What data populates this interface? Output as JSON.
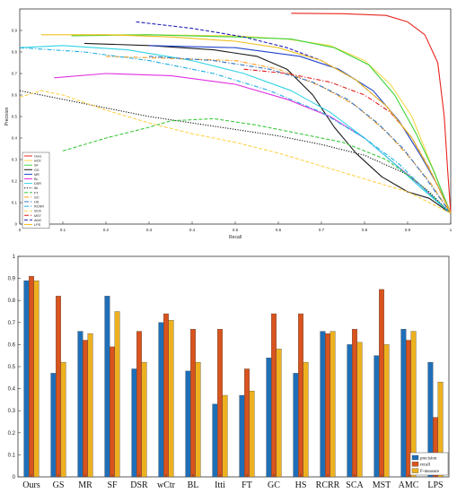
{
  "chart_data": [
    {
      "type": "line",
      "xlabel": "Recall",
      "ylabel": "Precision",
      "xlim": [
        0,
        1
      ],
      "ylim": [
        0,
        1
      ],
      "xticks": [
        "0",
        "0.1",
        "0.2",
        "0.3",
        "0.4",
        "0.5",
        "0.6",
        "0.7",
        "0.8",
        "0.9",
        "1"
      ],
      "yticks": [
        "0",
        "0.1",
        "0.2",
        "0.3",
        "0.4",
        "0.5",
        "0.6",
        "0.7",
        "0.8",
        "0.9"
      ],
      "grid": false,
      "legend_position": "bottom-left",
      "series": [
        {
          "name": "Ours",
          "color": "#e8251f",
          "dash": "solid",
          "points": [
            [
              0.63,
              0.98
            ],
            [
              0.75,
              0.978
            ],
            [
              0.85,
              0.97
            ],
            [
              0.9,
              0.94
            ],
            [
              0.94,
              0.88
            ],
            [
              0.97,
              0.75
            ],
            [
              0.985,
              0.5
            ],
            [
              0.993,
              0.25
            ],
            [
              1.0,
              0.05
            ]
          ]
        },
        {
          "name": "wCtr",
          "color": "#f3d94a",
          "dash": "solid",
          "points": [
            [
              0.12,
              0.88
            ],
            [
              0.3,
              0.88
            ],
            [
              0.5,
              0.875
            ],
            [
              0.62,
              0.86
            ],
            [
              0.72,
              0.83
            ],
            [
              0.8,
              0.76
            ],
            [
              0.86,
              0.65
            ],
            [
              0.91,
              0.5
            ],
            [
              0.95,
              0.3
            ],
            [
              1.0,
              0.05
            ]
          ]
        },
        {
          "name": "SF",
          "color": "#3fd43a",
          "dash": "solid",
          "points": [
            [
              0.12,
              0.875
            ],
            [
              0.3,
              0.88
            ],
            [
              0.5,
              0.87
            ],
            [
              0.63,
              0.86
            ],
            [
              0.73,
              0.82
            ],
            [
              0.81,
              0.74
            ],
            [
              0.87,
              0.6
            ],
            [
              0.92,
              0.42
            ],
            [
              0.96,
              0.25
            ],
            [
              1.0,
              0.05
            ]
          ]
        },
        {
          "name": "GS",
          "color": "#1a1a1a",
          "dash": "solid",
          "points": [
            [
              0.15,
              0.84
            ],
            [
              0.3,
              0.83
            ],
            [
              0.45,
              0.81
            ],
            [
              0.55,
              0.78
            ],
            [
              0.62,
              0.72
            ],
            [
              0.68,
              0.6
            ],
            [
              0.73,
              0.45
            ],
            [
              0.78,
              0.33
            ],
            [
              0.84,
              0.22
            ],
            [
              0.9,
              0.15
            ],
            [
              0.95,
              0.12
            ],
            [
              1.0,
              0.05
            ]
          ]
        },
        {
          "name": "MR",
          "color": "#2244cc",
          "dash": "solid",
          "points": [
            [
              0.3,
              0.83
            ],
            [
              0.5,
              0.82
            ],
            [
              0.65,
              0.78
            ],
            [
              0.74,
              0.72
            ],
            [
              0.82,
              0.62
            ],
            [
              0.88,
              0.48
            ],
            [
              0.93,
              0.32
            ],
            [
              0.97,
              0.18
            ],
            [
              1.0,
              0.05
            ]
          ]
        },
        {
          "name": "BL",
          "color": "#e030e0",
          "dash": "solid",
          "points": [
            [
              0.08,
              0.68
            ],
            [
              0.2,
              0.7
            ],
            [
              0.35,
              0.69
            ],
            [
              0.5,
              0.65
            ],
            [
              0.62,
              0.58
            ],
            [
              0.72,
              0.5
            ],
            [
              0.8,
              0.4
            ],
            [
              0.87,
              0.28
            ],
            [
              0.93,
              0.18
            ],
            [
              1.0,
              0.05
            ]
          ]
        },
        {
          "name": "DSR",
          "color": "#30d4e4",
          "dash": "solid",
          "points": [
            [
              0.0,
              0.82
            ],
            [
              0.1,
              0.83
            ],
            [
              0.25,
              0.81
            ],
            [
              0.4,
              0.76
            ],
            [
              0.52,
              0.7
            ],
            [
              0.63,
              0.62
            ],
            [
              0.72,
              0.52
            ],
            [
              0.8,
              0.4
            ],
            [
              0.87,
              0.28
            ],
            [
              0.93,
              0.17
            ],
            [
              1.0,
              0.05
            ]
          ]
        },
        {
          "name": "Itti",
          "color": "#111111",
          "dash": "dotted",
          "points": [
            [
              0.0,
              0.62
            ],
            [
              0.1,
              0.58
            ],
            [
              0.2,
              0.54
            ],
            [
              0.3,
              0.5
            ],
            [
              0.4,
              0.47
            ],
            [
              0.5,
              0.44
            ],
            [
              0.6,
              0.41
            ],
            [
              0.7,
              0.37
            ],
            [
              0.8,
              0.32
            ],
            [
              0.9,
              0.23
            ],
            [
              0.95,
              0.15
            ],
            [
              1.0,
              0.05
            ]
          ]
        },
        {
          "name": "FT",
          "color": "#3cc83c",
          "dash": "dashed",
          "points": [
            [
              0.1,
              0.34
            ],
            [
              0.2,
              0.4
            ],
            [
              0.3,
              0.45
            ],
            [
              0.35,
              0.48
            ],
            [
              0.45,
              0.49
            ],
            [
              0.55,
              0.46
            ],
            [
              0.65,
              0.42
            ],
            [
              0.75,
              0.38
            ],
            [
              0.85,
              0.3
            ],
            [
              0.92,
              0.2
            ],
            [
              1.0,
              0.05
            ]
          ]
        },
        {
          "name": "GC",
          "color": "#ff9d1f",
          "dash": "dashdot",
          "points": [
            [
              0.2,
              0.78
            ],
            [
              0.35,
              0.77
            ],
            [
              0.5,
              0.76
            ],
            [
              0.6,
              0.72
            ],
            [
              0.7,
              0.64
            ],
            [
              0.78,
              0.55
            ],
            [
              0.85,
              0.43
            ],
            [
              0.9,
              0.32
            ],
            [
              0.95,
              0.2
            ],
            [
              1.0,
              0.05
            ]
          ]
        },
        {
          "name": "HS",
          "color": "#2f70c0",
          "dash": "dashdot",
          "points": [
            [
              0.3,
              0.78
            ],
            [
              0.45,
              0.76
            ],
            [
              0.58,
              0.72
            ],
            [
              0.68,
              0.66
            ],
            [
              0.76,
              0.58
            ],
            [
              0.83,
              0.47
            ],
            [
              0.89,
              0.35
            ],
            [
              0.94,
              0.22
            ],
            [
              1.0,
              0.05
            ]
          ]
        },
        {
          "name": "RCRR",
          "color": "#1fb0e0",
          "dash": "dashdot",
          "points": [
            [
              0.0,
              0.82
            ],
            [
              0.15,
              0.8
            ],
            [
              0.3,
              0.76
            ],
            [
              0.45,
              0.7
            ],
            [
              0.58,
              0.62
            ],
            [
              0.7,
              0.52
            ],
            [
              0.8,
              0.4
            ],
            [
              0.88,
              0.28
            ],
            [
              0.94,
              0.16
            ],
            [
              1.0,
              0.05
            ]
          ]
        },
        {
          "name": "SCA",
          "color": "#ffd24a",
          "dash": "dashed",
          "points": [
            [
              0.0,
              0.59
            ],
            [
              0.05,
              0.62
            ],
            [
              0.1,
              0.6
            ],
            [
              0.2,
              0.53
            ],
            [
              0.3,
              0.47
            ],
            [
              0.4,
              0.42
            ],
            [
              0.5,
              0.38
            ],
            [
              0.6,
              0.33
            ],
            [
              0.7,
              0.27
            ],
            [
              0.8,
              0.21
            ],
            [
              0.9,
              0.15
            ],
            [
              1.0,
              0.05
            ]
          ]
        },
        {
          "name": "MST",
          "color": "#e02020",
          "dash": "dashdot",
          "points": [
            [
              0.52,
              0.72
            ],
            [
              0.62,
              0.7
            ],
            [
              0.72,
              0.66
            ],
            [
              0.8,
              0.6
            ],
            [
              0.86,
              0.52
            ],
            [
              0.91,
              0.4
            ],
            [
              0.95,
              0.26
            ],
            [
              1.0,
              0.05
            ]
          ]
        },
        {
          "name": "AMC",
          "color": "#2222bb",
          "dash": "dashed",
          "points": [
            [
              0.27,
              0.94
            ],
            [
              0.4,
              0.91
            ],
            [
              0.52,
              0.87
            ],
            [
              0.62,
              0.82
            ],
            [
              0.7,
              0.76
            ],
            [
              0.78,
              0.67
            ],
            [
              0.85,
              0.55
            ],
            [
              0.91,
              0.4
            ],
            [
              0.96,
              0.22
            ],
            [
              1.0,
              0.05
            ]
          ]
        },
        {
          "name": "LPS",
          "color": "#f0c020",
          "dash": "solid",
          "points": [
            [
              0.05,
              0.88
            ],
            [
              0.2,
              0.88
            ],
            [
              0.35,
              0.87
            ],
            [
              0.5,
              0.85
            ],
            [
              0.6,
              0.82
            ],
            [
              0.7,
              0.76
            ],
            [
              0.78,
              0.67
            ],
            [
              0.85,
              0.55
            ],
            [
              0.91,
              0.4
            ],
            [
              0.96,
              0.22
            ],
            [
              1.0,
              0.05
            ]
          ]
        }
      ]
    },
    {
      "type": "bar",
      "categories": [
        "Ours",
        "GS",
        "MR",
        "SF",
        "DSR",
        "wCtr",
        "BL",
        "Itti",
        "FT",
        "GC",
        "HS",
        "RCRR",
        "SCA",
        "MST",
        "AMC",
        "LPS"
      ],
      "ylim": [
        0,
        1
      ],
      "yticks": [
        "0",
        "0.1",
        "0.2",
        "0.3",
        "0.4",
        "0.5",
        "0.6",
        "0.7",
        "0.8",
        "0.9",
        "1"
      ],
      "legend_position": "bottom-right",
      "series": [
        {
          "name": "precision",
          "color": "#1f6fb8",
          "values": [
            0.89,
            0.47,
            0.66,
            0.82,
            0.49,
            0.7,
            0.48,
            0.33,
            0.37,
            0.54,
            0.47,
            0.66,
            0.6,
            0.55,
            0.67,
            0.52
          ]
        },
        {
          "name": "recall",
          "color": "#d9541e",
          "values": [
            0.91,
            0.82,
            0.62,
            0.59,
            0.66,
            0.74,
            0.67,
            0.67,
            0.49,
            0.74,
            0.74,
            0.65,
            0.67,
            0.85,
            0.62,
            0.27
          ]
        },
        {
          "name": "F-measure",
          "color": "#edb120",
          "values": [
            0.89,
            0.52,
            0.65,
            0.75,
            0.52,
            0.71,
            0.52,
            0.37,
            0.39,
            0.58,
            0.52,
            0.66,
            0.61,
            0.6,
            0.66,
            0.43
          ]
        }
      ]
    }
  ]
}
